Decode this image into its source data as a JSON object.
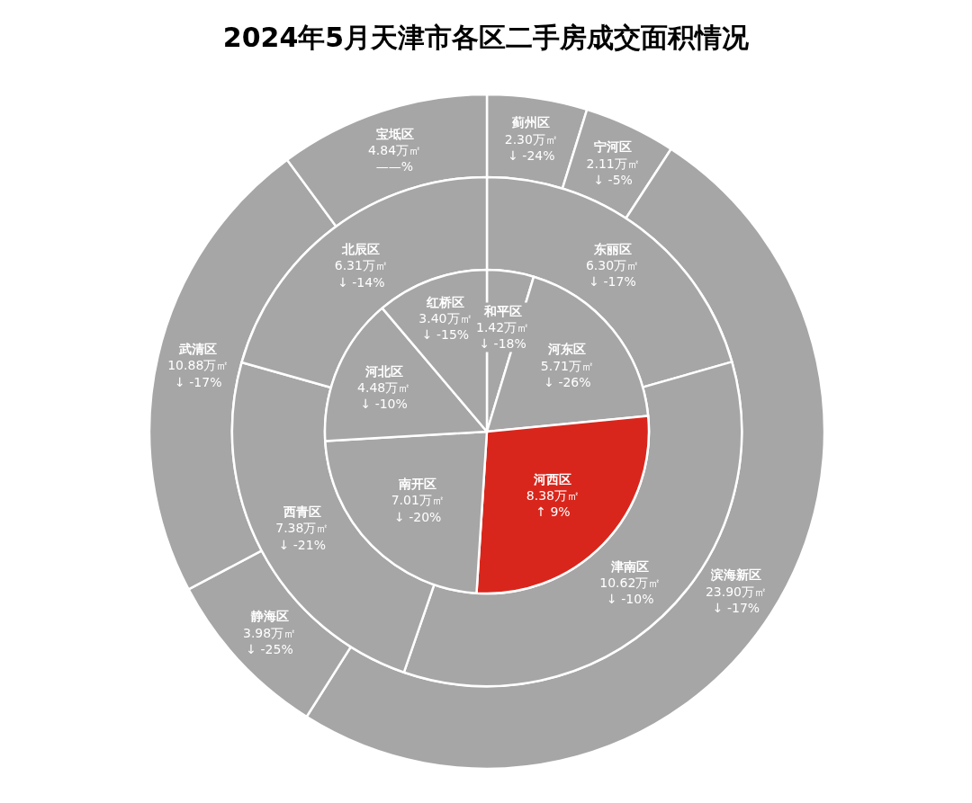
{
  "chart_data": [
    {
      "type": "donut",
      "title": "2024年5月天津市各区二手房成交面积情况",
      "categories": [
        "蓟州区",
        "宁河区",
        "滨海新区",
        "静海区",
        "武清区",
        "宝坻区"
      ],
      "values": [
        2.3,
        2.11,
        23.9,
        3.98,
        10.88,
        4.84
      ],
      "colors": [
        "#a6a6a6",
        "#a6a6a6",
        "#a6a6a6",
        "#a6a6a6",
        "#a6a6a6",
        "#a6a6a6"
      ],
      "value_labels": [
        "2.30万㎡\n↓ -24%",
        "2.11万㎡\n↓ -5%",
        "23.90万㎡\n↓ -17%",
        "3.98万㎡\n↓ -25%",
        "10.88万㎡\n↓ -17%",
        "4.84万㎡\n——%"
      ]
    },
    {
      "type": "donut",
      "categories": [
        "东丽区",
        "津南区",
        "西青区",
        "北辰区"
      ],
      "values": [
        6.3,
        10.62,
        7.38,
        6.31
      ],
      "colors": [
        "#a6a6a6",
        "#a6a6a6",
        "#a6a6a6",
        "#a6a6a6"
      ],
      "value_labels": [
        "6.30万㎡\n↓ -17%",
        "10.62万㎡\n↓ -10%",
        "7.38万㎡\n↓ -21%",
        "6.31万㎡\n↓ -14%"
      ]
    },
    {
      "type": "pie",
      "categories": [
        "和平区",
        "河东区",
        "河西区",
        "南开区",
        "河北区",
        "红桥区"
      ],
      "values": [
        1.42,
        5.71,
        8.38,
        7.01,
        4.48,
        3.4
      ],
      "colors": [
        "#a6a6a6",
        "#a6a6a6",
        "#d9261c",
        "#a6a6a6",
        "#a6a6a6",
        "#a6a6a6"
      ],
      "value_labels": [
        "1.42万㎡\n↓ -18%",
        "5.71万㎡\n↓ -26%",
        "8.38万㎡\n↑ 9%",
        "7.01万㎡\n↓ -20%",
        "4.48万㎡\n↓ -10%",
        "3.40万㎡\n↓ -15%"
      ]
    }
  ]
}
